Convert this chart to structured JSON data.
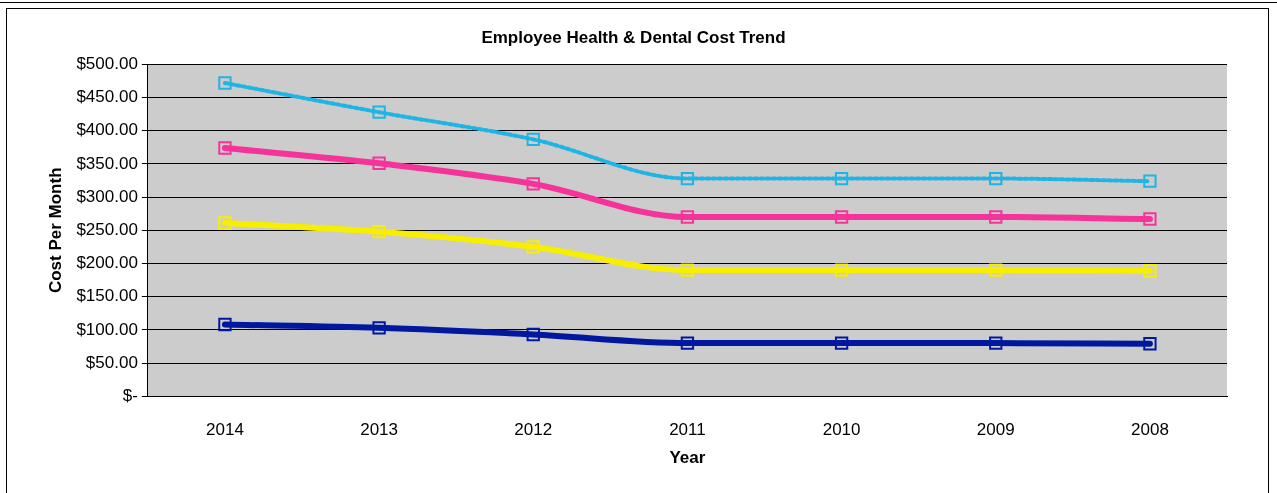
{
  "chart_data": {
    "type": "line",
    "title": "Employee Health & Dental Cost Trend",
    "xlabel": "Year",
    "ylabel": "Cost Per Month",
    "categories": [
      "2014",
      "2013",
      "2012",
      "2011",
      "2010",
      "2009",
      "2008"
    ],
    "series": [
      {
        "color": "#1eb4e4",
        "line_style": "dotted",
        "values": [
          472,
          428,
          387,
          328,
          328,
          328,
          324
        ]
      },
      {
        "color": "#f5339a",
        "values": [
          374,
          351,
          320,
          270,
          270,
          270,
          267
        ]
      },
      {
        "color": "#f7ee00",
        "values": [
          261,
          248,
          225,
          190,
          190,
          190,
          189
        ]
      },
      {
        "color": "#0018a0",
        "values": [
          108,
          103,
          93,
          80,
          80,
          80,
          79
        ]
      }
    ],
    "ylim": [
      0,
      500
    ],
    "yticks": [
      {
        "value": 0,
        "label": "$-"
      },
      {
        "value": 50,
        "label": "$50.00"
      },
      {
        "value": 100,
        "label": "$100.00"
      },
      {
        "value": 150,
        "label": "$150.00"
      },
      {
        "value": 200,
        "label": "$200.00"
      },
      {
        "value": 250,
        "label": "$250.00"
      },
      {
        "value": 300,
        "label": "$300.00"
      },
      {
        "value": 350,
        "label": "$350.00"
      },
      {
        "value": 400,
        "label": "$400.00"
      },
      {
        "value": 450,
        "label": "$450.00"
      },
      {
        "value": 500,
        "label": "$500.00"
      }
    ],
    "grid": "y",
    "marker": "square",
    "legend": false
  }
}
